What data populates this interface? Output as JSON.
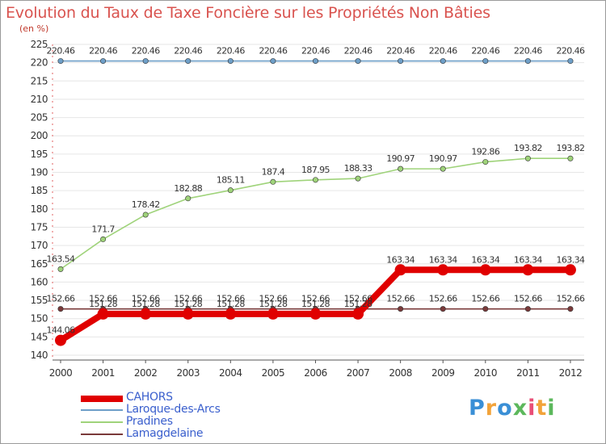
{
  "title": "Evolution du Taux de Taxe Foncière sur les Propriétés Non Bâties",
  "unit": "(en %)",
  "logo": [
    "P",
    "r",
    "o",
    "x",
    "i",
    "t",
    "i"
  ],
  "logo_colors": [
    "#3a8fd6",
    "#f2a33a",
    "#3a8fd6",
    "#5cb85c",
    "#e94e77",
    "#f2a33a",
    "#5cb85c"
  ],
  "chart_data": {
    "type": "line",
    "title": "Evolution du Taux de Taxe Foncière sur les Propriétés Non Bâties",
    "ylabel": "(en %)",
    "xlabel": "",
    "ylim": [
      140,
      225
    ],
    "yticks": [
      "140",
      "145",
      "150",
      "155",
      "160",
      "165",
      "170",
      "175",
      "180",
      "185",
      "190",
      "195",
      "200",
      "205",
      "210",
      "215",
      "220",
      "225"
    ],
    "categories": [
      "2000",
      "2001",
      "2002",
      "2003",
      "2004",
      "2005",
      "2006",
      "2007",
      "2008",
      "2009",
      "2010",
      "2011",
      "2012"
    ],
    "series": [
      {
        "name": "CAHORS",
        "color": "#e00000",
        "values": [
          144.06,
          151.28,
          151.28,
          151.28,
          151.28,
          151.28,
          151.28,
          151.28,
          163.34,
          163.34,
          163.34,
          163.34,
          163.34
        ],
        "labels": [
          "144.06",
          "151.28",
          "151.28",
          "151.28",
          "151.28",
          "151.28",
          "151.28",
          "151.28",
          "163.34",
          "163.34",
          "163.34",
          "163.34",
          "163.34"
        ]
      },
      {
        "name": "Laroque-des-Arcs",
        "color": "#6e9fc8",
        "values": [
          220.46,
          220.46,
          220.46,
          220.46,
          220.46,
          220.46,
          220.46,
          220.46,
          220.46,
          220.46,
          220.46,
          220.46,
          220.46
        ],
        "labels": [
          "220.46",
          "220.46",
          "220.46",
          "220.46",
          "220.46",
          "220.46",
          "220.46",
          "220.46",
          "220.46",
          "220.46",
          "220.46",
          "220.46",
          "220.46"
        ]
      },
      {
        "name": "Pradines",
        "color": "#9fd37a",
        "values": [
          163.54,
          171.7,
          178.42,
          182.88,
          185.11,
          187.4,
          187.95,
          188.33,
          190.97,
          190.97,
          192.86,
          193.82,
          193.82
        ],
        "labels": [
          "163.54",
          "171.7",
          "178.42",
          "182.88",
          "185.11",
          "187.4",
          "187.95",
          "188.33",
          "190.97",
          "190.97",
          "192.86",
          "193.82",
          "193.82"
        ]
      },
      {
        "name": "Lamagdelaine",
        "color": "#7a3a3a",
        "values": [
          152.66,
          152.66,
          152.66,
          152.66,
          152.66,
          152.66,
          152.66,
          152.66,
          152.66,
          152.66,
          152.66,
          152.66,
          152.66
        ],
        "labels": [
          "152.66",
          "152.66",
          "152.66",
          "152.66",
          "152.66",
          "152.66",
          "152.66",
          "152.66",
          "152.66",
          "152.66",
          "152.66",
          "152.66",
          "152.66"
        ]
      }
    ]
  }
}
